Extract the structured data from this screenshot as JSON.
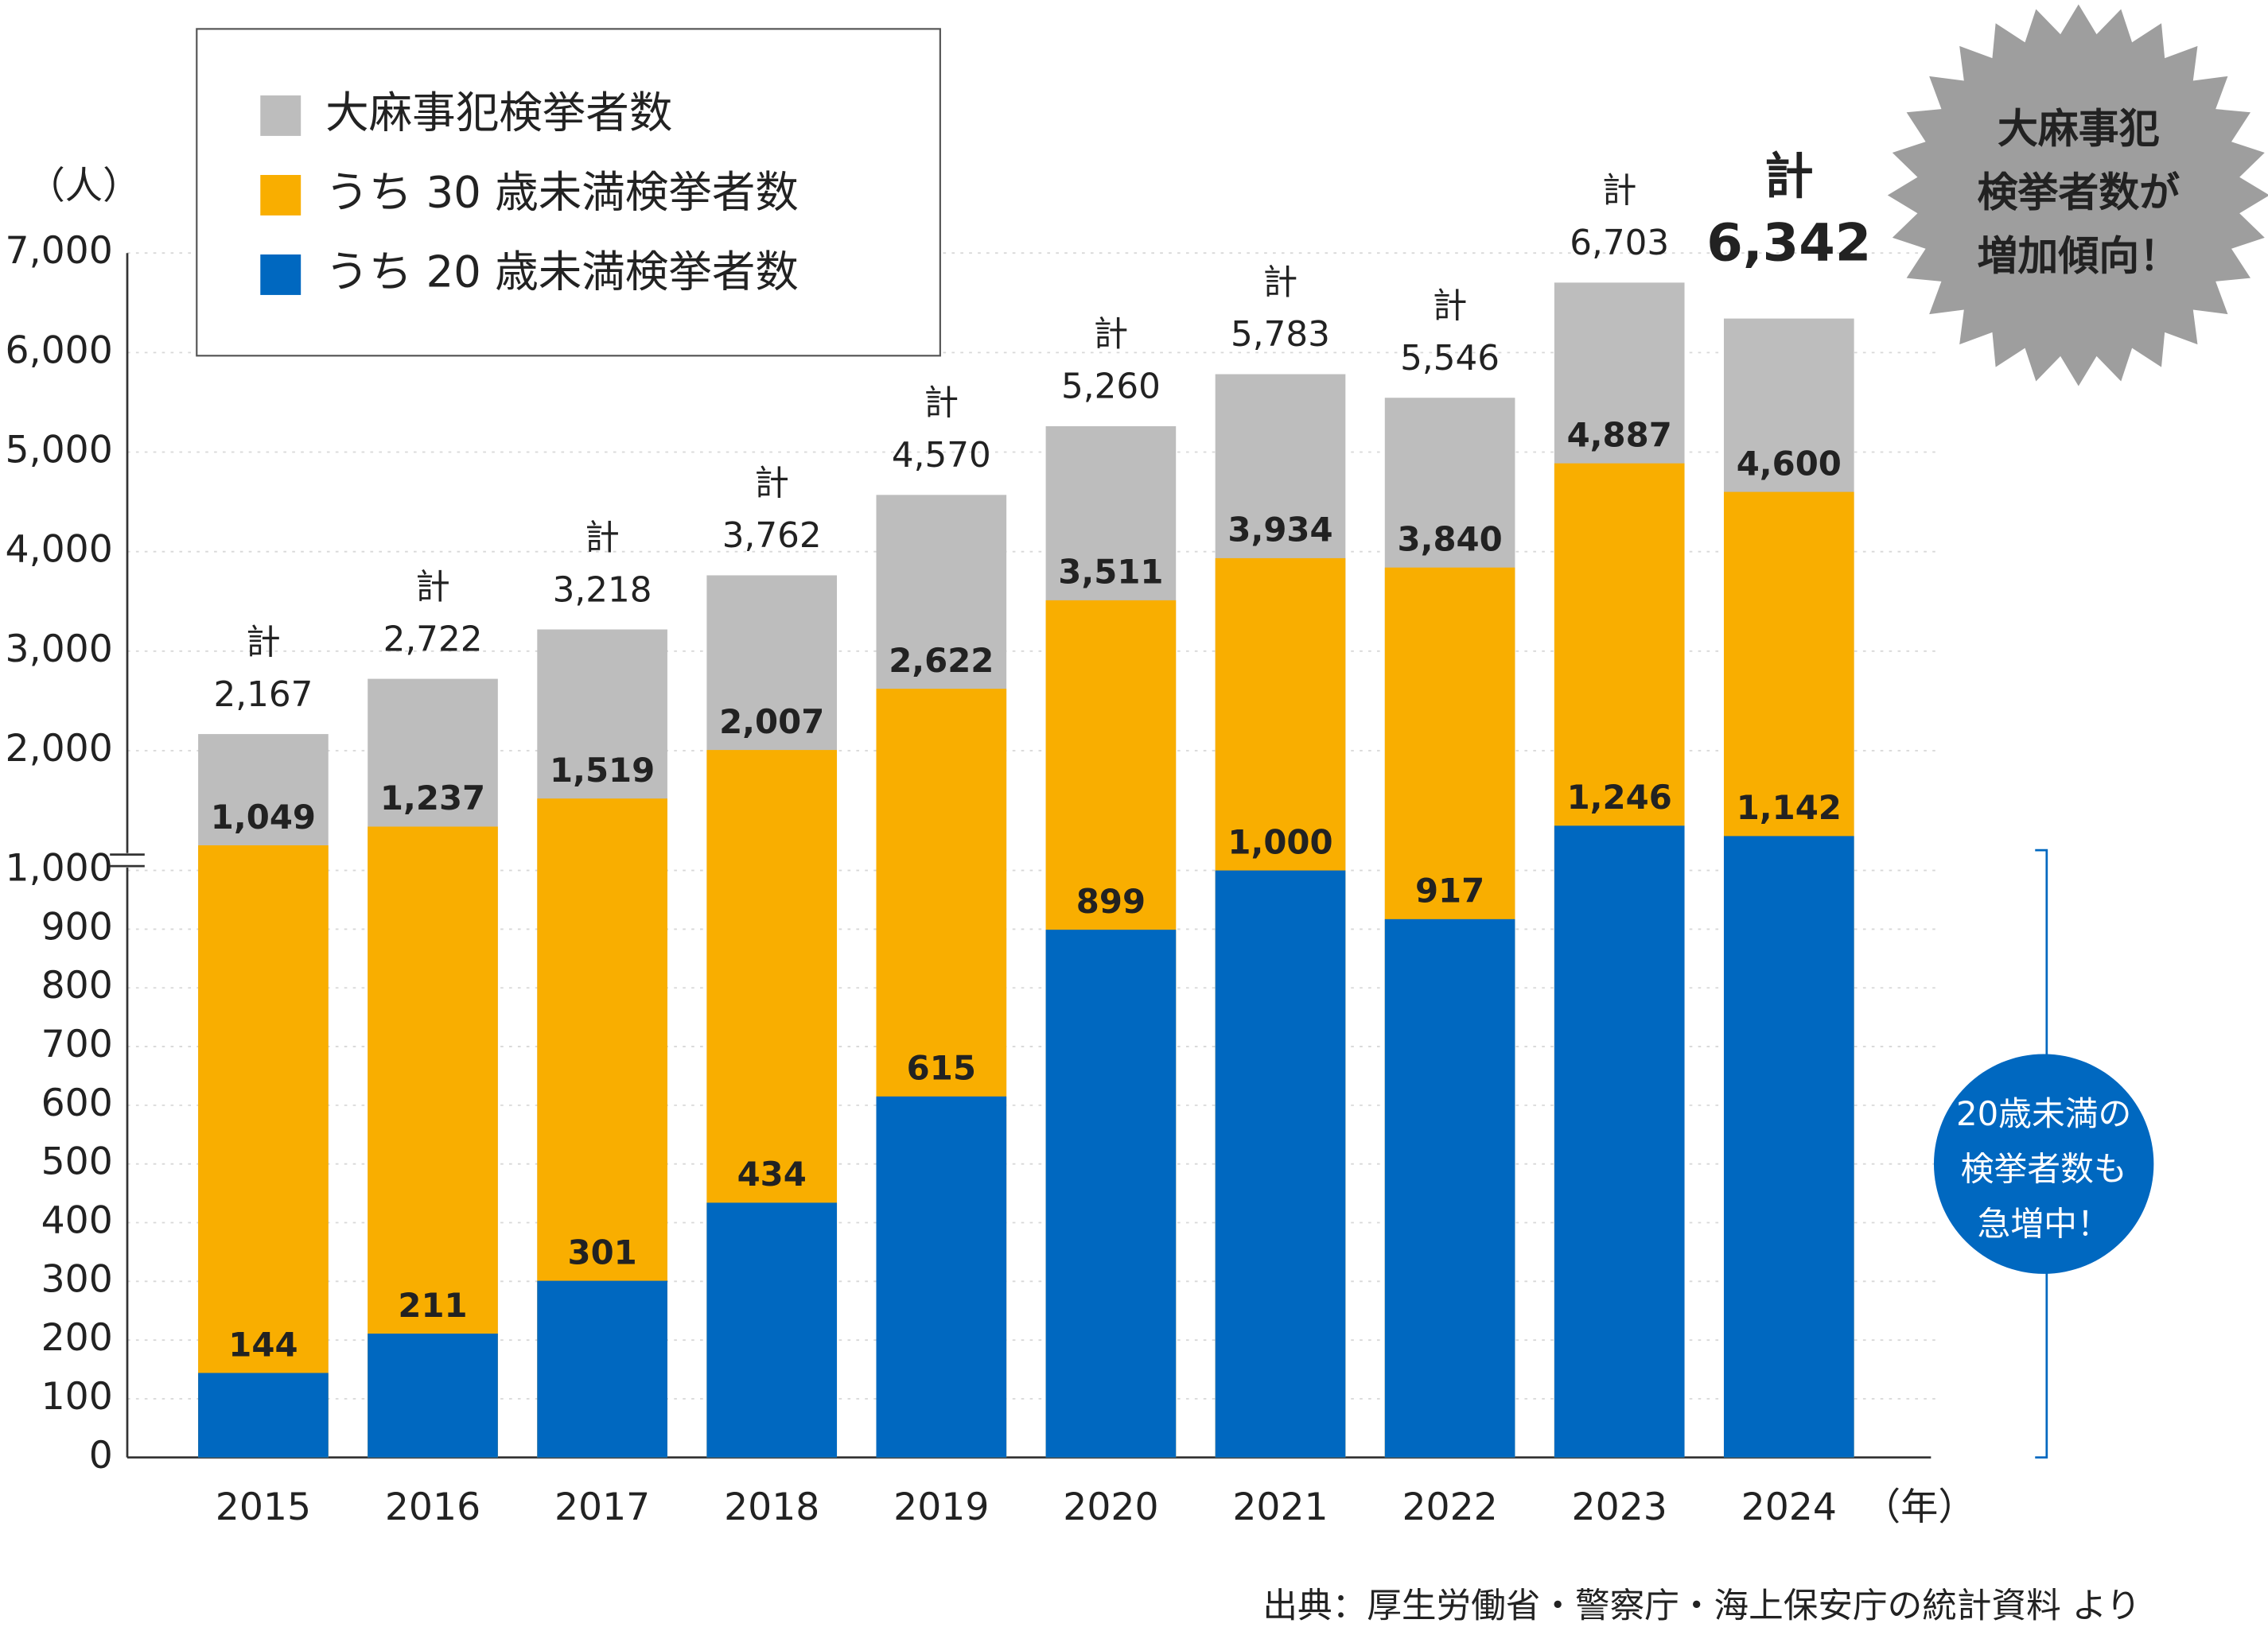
{
  "chart_data": {
    "type": "bar",
    "layout": "overlapping",
    "y_unit_label": "（人）",
    "x_unit_label": "（年）",
    "total_label": "計",
    "categories": [
      "2015",
      "2016",
      "2017",
      "2018",
      "2019",
      "2020",
      "2021",
      "2022",
      "2023",
      "2024"
    ],
    "series": [
      {
        "name": "大麻事犯検挙者数",
        "color": "#bdbdbd",
        "values": [
          2167,
          2722,
          3218,
          3762,
          4570,
          5260,
          5783,
          5546,
          6703,
          6342
        ],
        "value_labels": [
          "2,167",
          "2,722",
          "3,218",
          "3,762",
          "4,570",
          "5,260",
          "5,783",
          "5,546",
          "6,703",
          "6,342"
        ]
      },
      {
        "name": "うち 30 歳未満検挙者数",
        "color": "#f9ae00",
        "values": [
          1049,
          1237,
          1519,
          2007,
          2622,
          3511,
          3934,
          3840,
          4887,
          4600
        ],
        "value_labels": [
          "1,049",
          "1,237",
          "1,519",
          "2,007",
          "2,622",
          "3,511",
          "3,934",
          "3,840",
          "4,887",
          "4,600"
        ]
      },
      {
        "name": "うち 20 歳未満検挙者数",
        "color": "#0068c0",
        "values": [
          144,
          211,
          301,
          434,
          615,
          899,
          1000,
          917,
          1246,
          1142
        ],
        "value_labels": [
          "144",
          "211",
          "301",
          "434",
          "615",
          "899",
          "1,000",
          "917",
          "1,246",
          "1,142"
        ]
      }
    ],
    "ylim": [
      0,
      7000
    ],
    "axis_break": 1000,
    "yticks": [
      0,
      100,
      200,
      300,
      400,
      500,
      600,
      700,
      800,
      900,
      {
        "value": 1000,
        "label": "1,000"
      },
      {
        "value": 2000,
        "label": "2,000"
      },
      {
        "value": 3000,
        "label": "3,000"
      },
      {
        "value": 4000,
        "label": "4,000"
      },
      {
        "value": 5000,
        "label": "5,000"
      },
      {
        "value": 6000,
        "label": "6,000"
      },
      {
        "value": 7000,
        "label": "7,000"
      }
    ],
    "grid": true,
    "legend": "top-left",
    "annotations": [
      {
        "lines": [
          "大麻事犯",
          "検挙者数が",
          "増加傾向！"
        ],
        "color": "#9e9e9e"
      },
      {
        "lines": [
          "20歳未満の",
          "検挙者数も",
          "急増中！"
        ],
        "color": "#0068c0"
      }
    ],
    "source": "出典：厚生労働省・警察庁・海上保安庁の統計資料 より"
  }
}
